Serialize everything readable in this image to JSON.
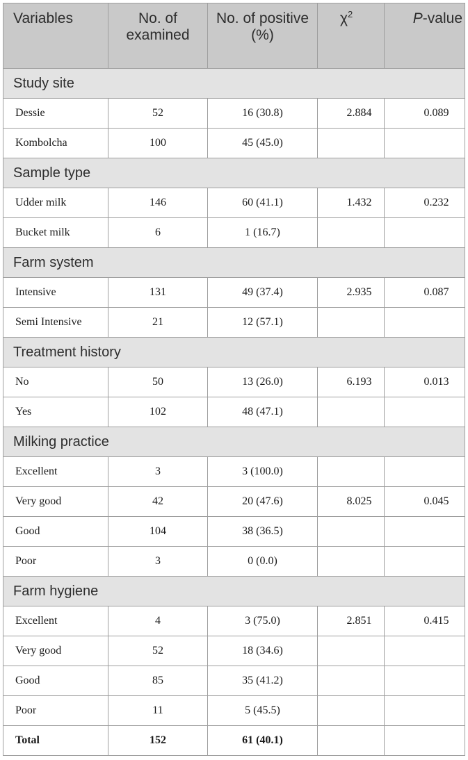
{
  "header": {
    "variables": "Variables",
    "examined": "No. of examined",
    "positive": "No. of positive (%)",
    "chi": "χ",
    "chi_sup": "2",
    "p_italic": "P",
    "p_rest": "-value"
  },
  "sections": [
    {
      "title": "Study site",
      "rows": [
        {
          "variable": "Dessie",
          "examined": "52",
          "positive": "16 (30.8)",
          "chi": "2.884",
          "p": "0.089"
        },
        {
          "variable": "Kombolcha",
          "examined": "100",
          "positive": "45 (45.0)",
          "chi": "",
          "p": ""
        }
      ]
    },
    {
      "title": "Sample type",
      "rows": [
        {
          "variable": "Udder milk",
          "examined": "146",
          "positive": "60 (41.1)",
          "chi": "1.432",
          "p": "0.232"
        },
        {
          "variable": "Bucket milk",
          "examined": "6",
          "positive": "1 (16.7)",
          "chi": "",
          "p": ""
        }
      ]
    },
    {
      "title": "Farm system",
      "rows": [
        {
          "variable": "Intensive",
          "examined": "131",
          "positive": "49 (37.4)",
          "chi": "2.935",
          "p": "0.087"
        },
        {
          "variable": "Semi Intensive",
          "examined": "21",
          "positive": "12 (57.1)",
          "chi": "",
          "p": ""
        }
      ]
    },
    {
      "title": "Treatment history",
      "rows": [
        {
          "variable": "No",
          "examined": "50",
          "positive": "13 (26.0)",
          "chi": "6.193",
          "p": "0.013"
        },
        {
          "variable": "Yes",
          "examined": "102",
          "positive": "48 (47.1)",
          "chi": "",
          "p": ""
        }
      ]
    },
    {
      "title": "Milking practice",
      "rows": [
        {
          "variable": "Excellent",
          "examined": "3",
          "positive": "3 (100.0)",
          "chi": "",
          "p": ""
        },
        {
          "variable": "Very good",
          "examined": "42",
          "positive": "20 (47.6)",
          "chi": "8.025",
          "p": "0.045"
        },
        {
          "variable": "Good",
          "examined": "104",
          "positive": "38 (36.5)",
          "chi": "",
          "p": ""
        },
        {
          "variable": "Poor",
          "examined": "3",
          "positive": "0 (0.0)",
          "chi": "",
          "p": ""
        }
      ]
    },
    {
      "title": "Farm hygiene",
      "rows": [
        {
          "variable": "Excellent",
          "examined": "4",
          "positive": "3 (75.0)",
          "chi": "2.851",
          "p": "0.415"
        },
        {
          "variable": "Very good",
          "examined": "52",
          "positive": "18 (34.6)",
          "chi": "",
          "p": ""
        },
        {
          "variable": "Good",
          "examined": "85",
          "positive": "35 (41.2)",
          "chi": "",
          "p": ""
        },
        {
          "variable": "Poor",
          "examined": "11",
          "positive": "5 (45.5)",
          "chi": "",
          "p": ""
        }
      ]
    }
  ],
  "total": {
    "variable": "Total",
    "examined": "152",
    "positive": "61 (40.1)",
    "chi": "",
    "p": ""
  }
}
